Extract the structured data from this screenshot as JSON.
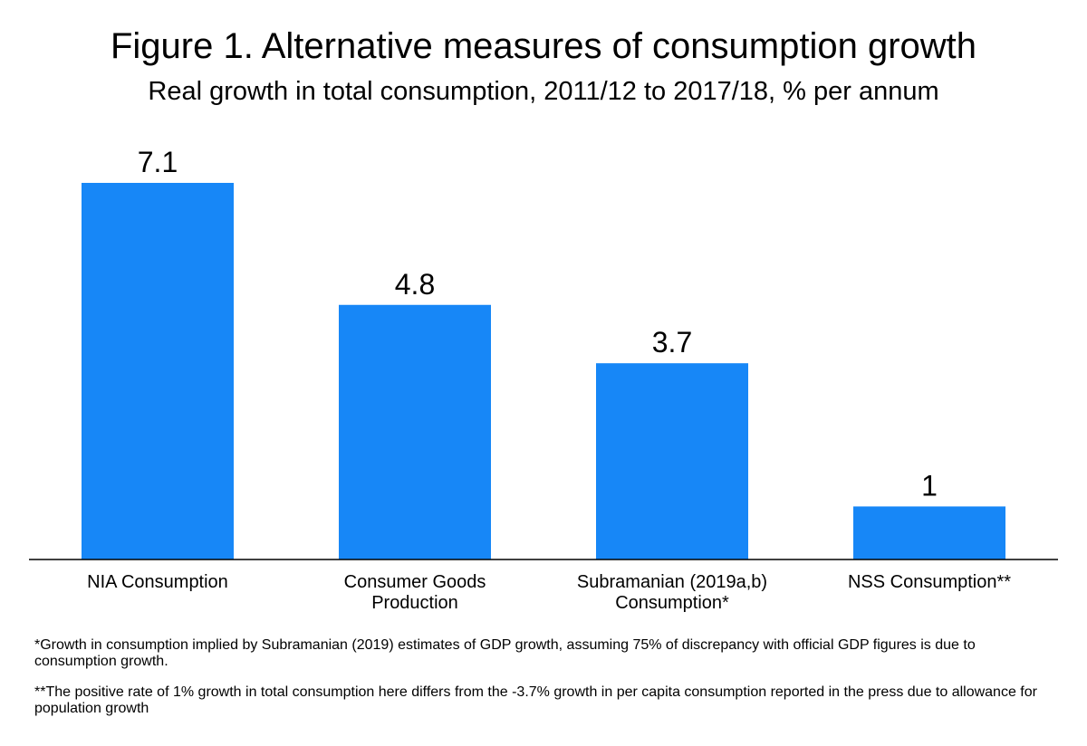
{
  "chart_data": {
    "type": "bar",
    "title": "Figure 1. Alternative measures of consumption growth",
    "subtitle": "Real growth in total consumption, 2011/12 to 2017/18, % per annum",
    "categories": [
      [
        "NIA Consumption"
      ],
      [
        "Consumer Goods",
        "Production"
      ],
      [
        "Subramanian (2019a,b)",
        "Consumption*"
      ],
      [
        "NSS Consumption**"
      ]
    ],
    "values": [
      7.1,
      4.8,
      3.7,
      1
    ],
    "value_labels": [
      "7.1",
      "4.8",
      "3.7",
      "1"
    ],
    "ylim": [
      0,
      7.1
    ],
    "grid": false,
    "legend": "none",
    "bar_color": "#1787f7",
    "axis_color": "#000000"
  },
  "notes": [
    "*Growth in consumption implied by Subramanian (2019) estimates of GDP growth, assuming 75% of discrepancy with official GDP figures is due to consumption growth.",
    "**The positive rate of 1% growth in total consumption here differs from the -3.7% growth in per capita consumption reported in the press due to allowance for population growth"
  ]
}
